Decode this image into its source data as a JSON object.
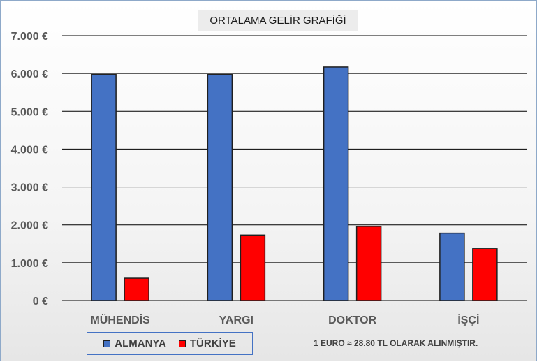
{
  "chart_data": {
    "type": "bar",
    "title": "ORTALAMA GELİR GRAFİĞİ",
    "categories": [
      "MÜHENDİS",
      "YARGI",
      "DOKTOR",
      "İŞÇİ"
    ],
    "series": [
      {
        "name": "ALMANYA",
        "color": "#4472c4",
        "values": [
          5970,
          5970,
          6170,
          1780
        ]
      },
      {
        "name": "TÜRKİYE",
        "color": "#ff0000",
        "values": [
          590,
          1730,
          1960,
          1370
        ]
      }
    ],
    "ylim": [
      0,
      7000
    ],
    "yticks": [
      0,
      1000,
      2000,
      3000,
      4000,
      5000,
      6000,
      7000
    ],
    "ytick_labels": [
      "0 €",
      "1.000 €",
      "2.000 €",
      "3.000 €",
      "4.000 €",
      "5.000 €",
      "6.000 €",
      "7.000 €"
    ],
    "xlabel": "",
    "ylabel": "",
    "grid": true,
    "legend_position": "bottom-left",
    "annotation": "1 EURO ≈ 28.80 TL OLARAK ALINMIŞTIR."
  }
}
